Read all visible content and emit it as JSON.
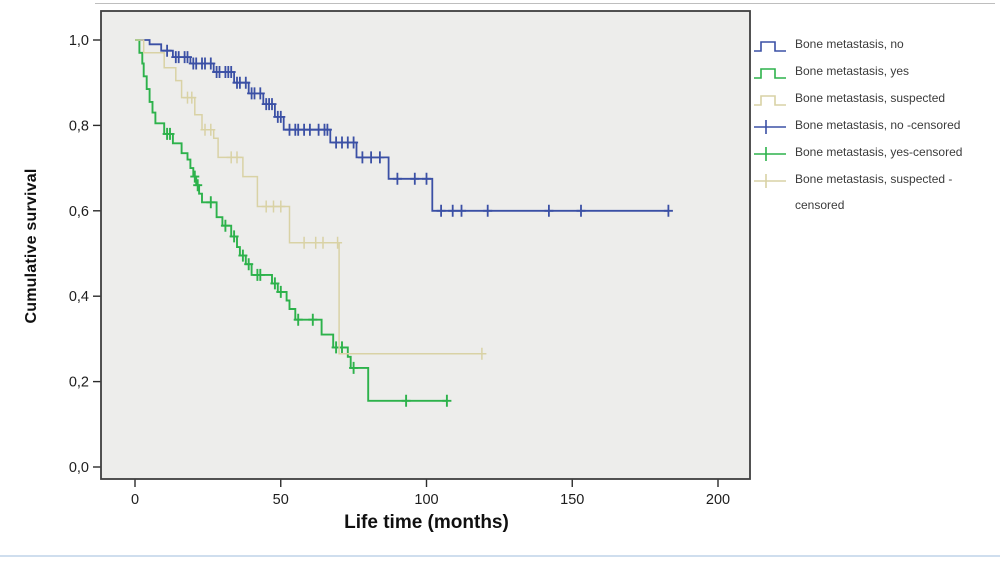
{
  "figure": {
    "background": "#ffffff",
    "top_rule_color": "#b3b3b3",
    "bottom_rule_color": "#cfdeee"
  },
  "chart_data": {
    "type": "line",
    "variant": "kaplan_meier_step",
    "title": "",
    "xlabel": "Life time (months)",
    "ylabel": "Cumulative survival",
    "grid": false,
    "plot_background": "#ededeb",
    "frame_color": "#3f3f3f",
    "tick_color": "#2b2b2b",
    "tick_label_color": "#1d1d1d",
    "x_axis": {
      "tick_values": [
        0,
        50,
        100,
        150,
        200
      ],
      "tick_labels": [
        "0",
        "50",
        "100",
        "150",
        "200"
      ],
      "range": [
        -12,
        212
      ]
    },
    "y_axis": {
      "tick_values": [
        0,
        0.2,
        0.4,
        0.6,
        0.8,
        1.0
      ],
      "tick_labels": [
        "0,0",
        "0,2",
        "0,4",
        "0,6",
        "0,8",
        "1,0"
      ],
      "range": [
        0,
        1.08
      ]
    },
    "series": [
      {
        "name": "Bone metastasis, no",
        "color": "#3b50a5",
        "steps": [
          [
            0,
            1.0
          ],
          [
            5,
            0.99
          ],
          [
            9,
            0.975
          ],
          [
            13,
            0.96
          ],
          [
            19,
            0.945
          ],
          [
            27,
            0.925
          ],
          [
            34,
            0.9
          ],
          [
            39,
            0.875
          ],
          [
            44,
            0.85
          ],
          [
            48,
            0.82
          ],
          [
            51,
            0.79
          ],
          [
            67,
            0.76
          ],
          [
            76,
            0.725
          ],
          [
            87,
            0.675
          ],
          [
            102,
            0.6
          ],
          [
            183,
            0.6
          ]
        ],
        "censored": [
          [
            11,
            0.975
          ],
          [
            14,
            0.96
          ],
          [
            15,
            0.96
          ],
          [
            17,
            0.96
          ],
          [
            18,
            0.96
          ],
          [
            20,
            0.945
          ],
          [
            21,
            0.945
          ],
          [
            23,
            0.945
          ],
          [
            24,
            0.945
          ],
          [
            26,
            0.945
          ],
          [
            28,
            0.925
          ],
          [
            29,
            0.925
          ],
          [
            31,
            0.925
          ],
          [
            32,
            0.925
          ],
          [
            33,
            0.925
          ],
          [
            35,
            0.9
          ],
          [
            36,
            0.9
          ],
          [
            38,
            0.9
          ],
          [
            40,
            0.875
          ],
          [
            41,
            0.875
          ],
          [
            43,
            0.875
          ],
          [
            45,
            0.85
          ],
          [
            46,
            0.85
          ],
          [
            47,
            0.85
          ],
          [
            49,
            0.82
          ],
          [
            50,
            0.82
          ],
          [
            53,
            0.79
          ],
          [
            55,
            0.79
          ],
          [
            56,
            0.79
          ],
          [
            58,
            0.79
          ],
          [
            60,
            0.79
          ],
          [
            63,
            0.79
          ],
          [
            65,
            0.79
          ],
          [
            66,
            0.79
          ],
          [
            69,
            0.76
          ],
          [
            71,
            0.76
          ],
          [
            73,
            0.76
          ],
          [
            75,
            0.76
          ],
          [
            78,
            0.725
          ],
          [
            81,
            0.725
          ],
          [
            84,
            0.725
          ],
          [
            90,
            0.675
          ],
          [
            96,
            0.675
          ],
          [
            100,
            0.675
          ],
          [
            105,
            0.6
          ],
          [
            109,
            0.6
          ],
          [
            112,
            0.6
          ],
          [
            121,
            0.6
          ],
          [
            142,
            0.6
          ],
          [
            153,
            0.6
          ],
          [
            183,
            0.6
          ]
        ]
      },
      {
        "name": "Bone metastasis, yes",
        "color": "#2db24b",
        "steps": [
          [
            0,
            1.0
          ],
          [
            1.5,
            0.97
          ],
          [
            2.5,
            0.945
          ],
          [
            3,
            0.915
          ],
          [
            4,
            0.885
          ],
          [
            5,
            0.855
          ],
          [
            6,
            0.83
          ],
          [
            7,
            0.805
          ],
          [
            10,
            0.78
          ],
          [
            13,
            0.758
          ],
          [
            16,
            0.735
          ],
          [
            18,
            0.72
          ],
          [
            19,
            0.7
          ],
          [
            20,
            0.68
          ],
          [
            21,
            0.66
          ],
          [
            22,
            0.64
          ],
          [
            23,
            0.62
          ],
          [
            28,
            0.585
          ],
          [
            30,
            0.565
          ],
          [
            33,
            0.54
          ],
          [
            35,
            0.515
          ],
          [
            36,
            0.495
          ],
          [
            38,
            0.475
          ],
          [
            40,
            0.45
          ],
          [
            47,
            0.43
          ],
          [
            49,
            0.41
          ],
          [
            52,
            0.39
          ],
          [
            53,
            0.37
          ],
          [
            55,
            0.345
          ],
          [
            64,
            0.31
          ],
          [
            68,
            0.28
          ],
          [
            73,
            0.258
          ],
          [
            74,
            0.232
          ],
          [
            80,
            0.155
          ],
          [
            107,
            0.155
          ]
        ],
        "censored": [
          [
            11,
            0.78
          ],
          [
            12,
            0.78
          ],
          [
            20.5,
            0.68
          ],
          [
            21.5,
            0.66
          ],
          [
            26,
            0.62
          ],
          [
            31,
            0.565
          ],
          [
            34,
            0.54
          ],
          [
            37,
            0.495
          ],
          [
            39,
            0.475
          ],
          [
            42,
            0.45
          ],
          [
            43,
            0.45
          ],
          [
            48,
            0.43
          ],
          [
            50,
            0.41
          ],
          [
            56,
            0.345
          ],
          [
            61,
            0.345
          ],
          [
            69,
            0.28
          ],
          [
            71,
            0.28
          ],
          [
            75,
            0.232
          ],
          [
            93,
            0.155
          ],
          [
            107,
            0.155
          ]
        ]
      },
      {
        "name": "Bone metastasis, suspected",
        "color": "#d9d2a5",
        "steps": [
          [
            0,
            1.0
          ],
          [
            3,
            0.97
          ],
          [
            10,
            0.935
          ],
          [
            14,
            0.905
          ],
          [
            16,
            0.865
          ],
          [
            20.5,
            0.825
          ],
          [
            23,
            0.79
          ],
          [
            27,
            0.77
          ],
          [
            28.5,
            0.725
          ],
          [
            37,
            0.68
          ],
          [
            42,
            0.61
          ],
          [
            53,
            0.525
          ],
          [
            70,
            0.265
          ],
          [
            119,
            0.265
          ]
        ],
        "censored": [
          [
            18,
            0.865
          ],
          [
            19.5,
            0.865
          ],
          [
            24,
            0.79
          ],
          [
            26,
            0.79
          ],
          [
            33,
            0.725
          ],
          [
            35,
            0.725
          ],
          [
            45,
            0.61
          ],
          [
            47.5,
            0.61
          ],
          [
            50,
            0.61
          ],
          [
            58,
            0.525
          ],
          [
            62,
            0.525
          ],
          [
            64.5,
            0.525
          ],
          [
            69.5,
            0.525
          ],
          [
            119,
            0.265
          ]
        ]
      }
    ],
    "legend": {
      "position": "right",
      "items": [
        {
          "label": "Bone metastasis, no",
          "series": 0,
          "glyph": "step"
        },
        {
          "label": "Bone metastasis, yes",
          "series": 1,
          "glyph": "step"
        },
        {
          "label": "Bone metastasis, suspected",
          "series": 2,
          "glyph": "step"
        },
        {
          "label": "Bone metastasis, no -censored",
          "series": 0,
          "glyph": "plus"
        },
        {
          "label": "Bone metastasis, yes-censored",
          "series": 1,
          "glyph": "plus"
        },
        {
          "label": "Bone metastasis, suspected -censored",
          "series": 2,
          "glyph": "plus"
        }
      ]
    }
  }
}
